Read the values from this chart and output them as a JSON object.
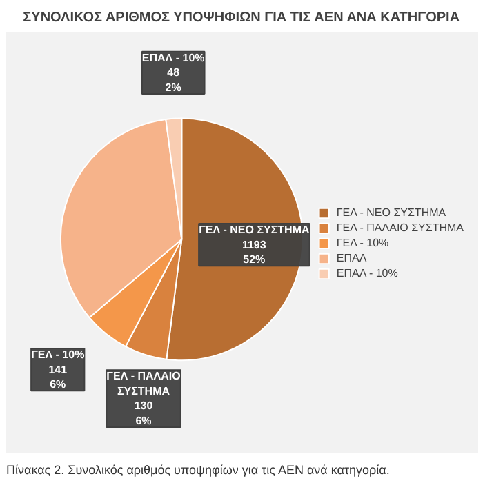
{
  "chart_data": {
    "type": "pie",
    "title": "ΣΥΝΟΛΙΚΟΣ ΑΡΙΘΜΟΣ ΥΠΟΨΗΦΙΩΝ ΓΙΑ ΤΙΣ ΑΕΝ ΑΝΑ ΚΑΤΗΓΟΡΙΑ",
    "categories": [
      "ΓΕΛ - ΝΕΟ ΣΥΣΤΗΜΑ",
      "ΓΕΛ - ΠΑΛΑΙΟ ΣΥΣΤΗΜΑ",
      "ΓΕΛ - 10%",
      "ΕΠΑΛ",
      "ΕΠΑΛ - 10%"
    ],
    "values": [
      1193,
      130,
      141,
      782,
      48
    ],
    "value_labels": [
      "1193\n52%",
      "130\n6%",
      "141\n6%",
      null,
      "48\n2%"
    ],
    "colors": [
      "#b86e32",
      "#d9823e",
      "#f4974a",
      "#f6b38a",
      "#f9cdb2"
    ],
    "legend": "right",
    "annotations": [
      "Πίνακας 2. Συνολικός αριθμός υποψηφίων για τις ΑΕΝ ανά κατηγορία."
    ]
  }
}
